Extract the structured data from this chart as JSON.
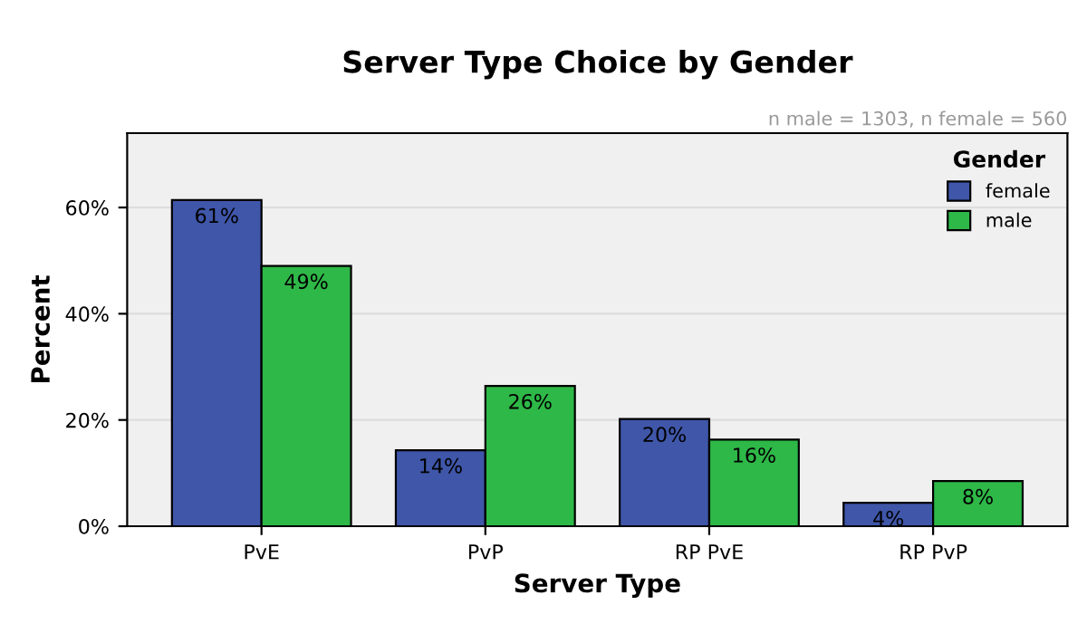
{
  "chart_data": {
    "type": "bar",
    "title": "Server Type Choice by Gender",
    "xlabel": "Server Type",
    "ylabel": "Percent",
    "legend_title": "Gender",
    "annotations": [
      "n male = 1303, n female = 560"
    ],
    "categories": [
      "PvE",
      "PvP",
      "RP PvE",
      "RP PvP"
    ],
    "series": [
      {
        "name": "female",
        "color": "#3f56a9",
        "values": [
          61.4,
          14.3,
          20.2,
          4.4
        ],
        "value_labels": [
          "61%",
          "14%",
          "20%",
          "4%"
        ]
      },
      {
        "name": "male",
        "color": "#2eb847",
        "values": [
          49.0,
          26.4,
          16.3,
          8.5
        ],
        "value_labels": [
          "49%",
          "26%",
          "16%",
          "8%"
        ]
      }
    ],
    "ylim": [
      0,
      74
    ],
    "yticks": [
      {
        "value": 0,
        "label": "0%"
      },
      {
        "value": 20,
        "label": "20%"
      },
      {
        "value": 40,
        "label": "40%"
      },
      {
        "value": 60,
        "label": "60%"
      }
    ],
    "grid": "y",
    "legend": "top right"
  }
}
